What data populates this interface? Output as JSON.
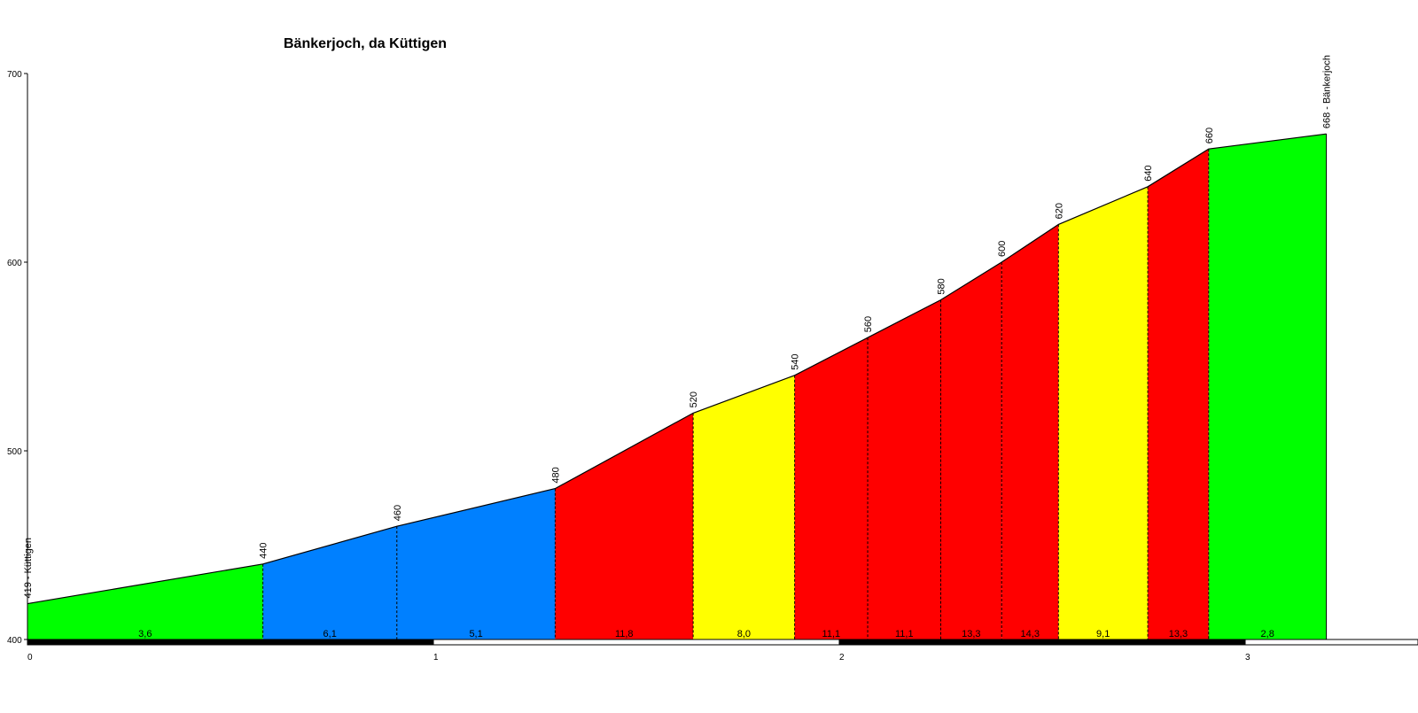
{
  "chart_data": {
    "type": "area",
    "title": "Bänkerjoch, da Küttigen",
    "xlabel": "",
    "ylabel": "",
    "xlim": [
      0,
      3.3
    ],
    "ylim": [
      400,
      700
    ],
    "y_ticks": [
      400,
      500,
      600,
      700
    ],
    "x_ticks": [
      0,
      1,
      2,
      3
    ],
    "points": [
      {
        "km": 0.0,
        "elev": 419
      },
      {
        "km": 0.58,
        "elev": 440
      },
      {
        "km": 0.91,
        "elev": 460
      },
      {
        "km": 1.3,
        "elev": 480
      },
      {
        "km": 1.64,
        "elev": 520
      },
      {
        "km": 1.89,
        "elev": 540
      },
      {
        "km": 2.07,
        "elev": 560
      },
      {
        "km": 2.25,
        "elev": 580
      },
      {
        "km": 2.4,
        "elev": 600
      },
      {
        "km": 2.54,
        "elev": 620
      },
      {
        "km": 2.76,
        "elev": 640
      },
      {
        "km": 2.91,
        "elev": 660
      },
      {
        "km": 3.2,
        "elev": 668
      }
    ],
    "elevation_labels": [
      "419 - Küttigen",
      "440",
      "460",
      "480",
      "520",
      "540",
      "560",
      "580",
      "600",
      "620",
      "640",
      "660",
      "668 - Bänkerjoch"
    ],
    "segments": [
      {
        "grade": "3,6",
        "color": "#00ff00"
      },
      {
        "grade": "6,1",
        "color": "#0080ff"
      },
      {
        "grade": "5,1",
        "color": "#0080ff"
      },
      {
        "grade": "11,8",
        "color": "#ff0000"
      },
      {
        "grade": "8,0",
        "color": "#ffff00"
      },
      {
        "grade": "11,1",
        "color": "#ff0000"
      },
      {
        "grade": "11,1",
        "color": "#ff0000"
      },
      {
        "grade": "13,3",
        "color": "#ff0000"
      },
      {
        "grade": "14,3",
        "color": "#ff0000"
      },
      {
        "grade": "9,1",
        "color": "#ffff00"
      },
      {
        "grade": "13,3",
        "color": "#ff0000"
      },
      {
        "grade": "2,8",
        "color": "#00ff00"
      }
    ]
  }
}
